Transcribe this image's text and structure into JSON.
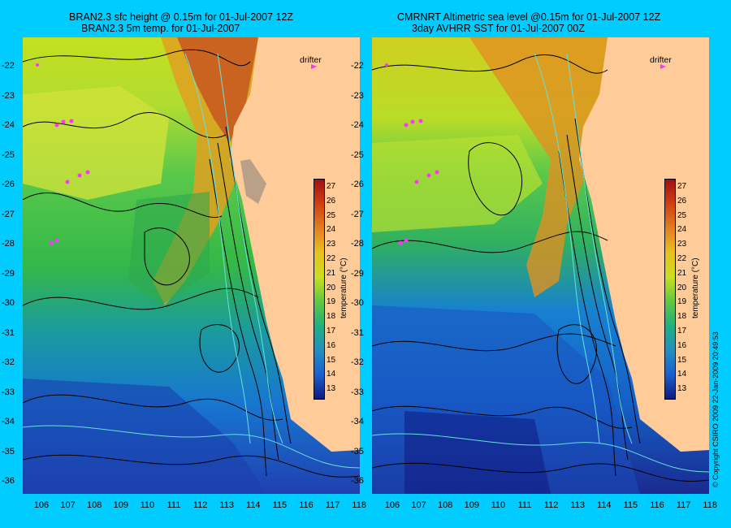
{
  "left_panel": {
    "title_line1": "BRAN2.3 sfc height @ 0.15m for 01-Jul-2007 12Z",
    "title_line2": "BRAN2.3 5m temp. for 01-Jul-2007",
    "drifter_label": "drifter"
  },
  "right_panel": {
    "title_line1": "CMRNRT Altimetric sea level  @0.15m  for 01-Jul-2007 12Z",
    "title_line2": "3day AVHRR SST for 01-Jul-2007 00Z",
    "drifter_label": "drifter"
  },
  "y_ticks": [
    "-22",
    "-23",
    "-24",
    "-25",
    "-26",
    "-27",
    "-28",
    "-29",
    "-30",
    "-31",
    "-32",
    "-33",
    "-34",
    "-35",
    "-36"
  ],
  "x_ticks": [
    "106",
    "107",
    "108",
    "109",
    "110",
    "111",
    "112",
    "113",
    "114",
    "115",
    "116",
    "117",
    "118"
  ],
  "colorbar": {
    "ticks": [
      "27",
      "26",
      "25",
      "24",
      "23",
      "22",
      "21",
      "20",
      "19",
      "18",
      "17",
      "16",
      "15",
      "14",
      "13"
    ],
    "label": "temperature (°C)"
  },
  "copyright": "© Copyright CSIRO 2009   22-Jan-2009 20:49:53",
  "colors": {
    "background": "#00ccff",
    "land": "#ffcc99",
    "drifter": "#ff33ff",
    "contour": "#000000",
    "bathymetry": "#66e0e0"
  }
}
